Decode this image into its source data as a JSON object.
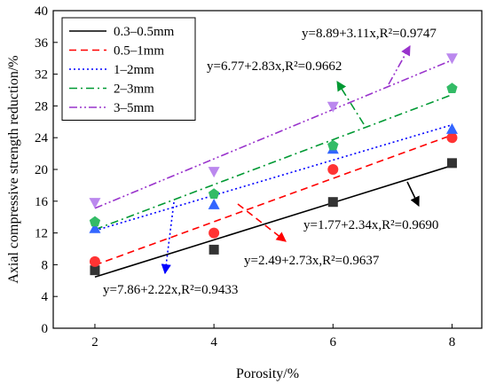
{
  "chart_data": {
    "type": "scatter",
    "xlabel": "Porosity/%",
    "ylabel": "Axial compressive strength reduction/%",
    "xlim": [
      1.3,
      8.5
    ],
    "ylim": [
      0,
      40
    ],
    "x_ticks": [
      2,
      4,
      6,
      8
    ],
    "y_ticks": [
      0,
      4,
      8,
      12,
      16,
      20,
      24,
      28,
      32,
      36,
      40
    ],
    "grid": false,
    "legend_position": "top-left",
    "series": [
      {
        "name": "0.3–0.5mm",
        "color": "#000000",
        "line_style": "solid",
        "marker": "square",
        "marker_color": "#333333",
        "x": [
          2,
          4,
          6,
          8
        ],
        "y": [
          7.3,
          9.9,
          15.9,
          20.8
        ],
        "fit": {
          "intercept": 1.77,
          "slope": 2.34
        },
        "equation": "y=1.77+2.34x,R²=0.9690"
      },
      {
        "name": "0.5–1mm",
        "color": "#ff0000",
        "line_style": "dashed",
        "marker": "circle",
        "marker_color": "#ff3333",
        "x": [
          2,
          4,
          6,
          8
        ],
        "y": [
          8.4,
          12.0,
          20.0,
          24.0
        ],
        "fit": {
          "intercept": 2.49,
          "slope": 2.73
        },
        "equation": "y=2.49+2.73x,R²=0.9637"
      },
      {
        "name": "1–2mm",
        "color": "#0000ff",
        "line_style": "dotted",
        "marker": "triangle",
        "marker_color": "#3366ff",
        "x": [
          2,
          4,
          6,
          8
        ],
        "y": [
          12.6,
          15.6,
          22.6,
          25.1
        ],
        "fit": {
          "intercept": 7.86,
          "slope": 2.22
        },
        "equation": "y=7.86+2.22x,R²=0.9433"
      },
      {
        "name": "2–3mm",
        "color": "#009933",
        "line_style": "dashdot",
        "marker": "pentagon",
        "marker_color": "#33bb66",
        "x": [
          2,
          4,
          6,
          8
        ],
        "y": [
          13.4,
          16.9,
          23.0,
          30.2
        ],
        "fit": {
          "intercept": 6.77,
          "slope": 2.83
        },
        "equation": "y=6.77+2.83x,R²=0.9662"
      },
      {
        "name": "3–5mm",
        "color": "#9933cc",
        "line_style": "dashdotdot",
        "marker": "triangle-down",
        "marker_color": "#bb88ee",
        "x": [
          2,
          4,
          6,
          8
        ],
        "y": [
          15.8,
          19.7,
          27.9,
          34.0
        ],
        "fit": {
          "intercept": 8.89,
          "slope": 3.11
        },
        "equation": "y=8.89+3.11x,R²=0.9747"
      }
    ]
  }
}
